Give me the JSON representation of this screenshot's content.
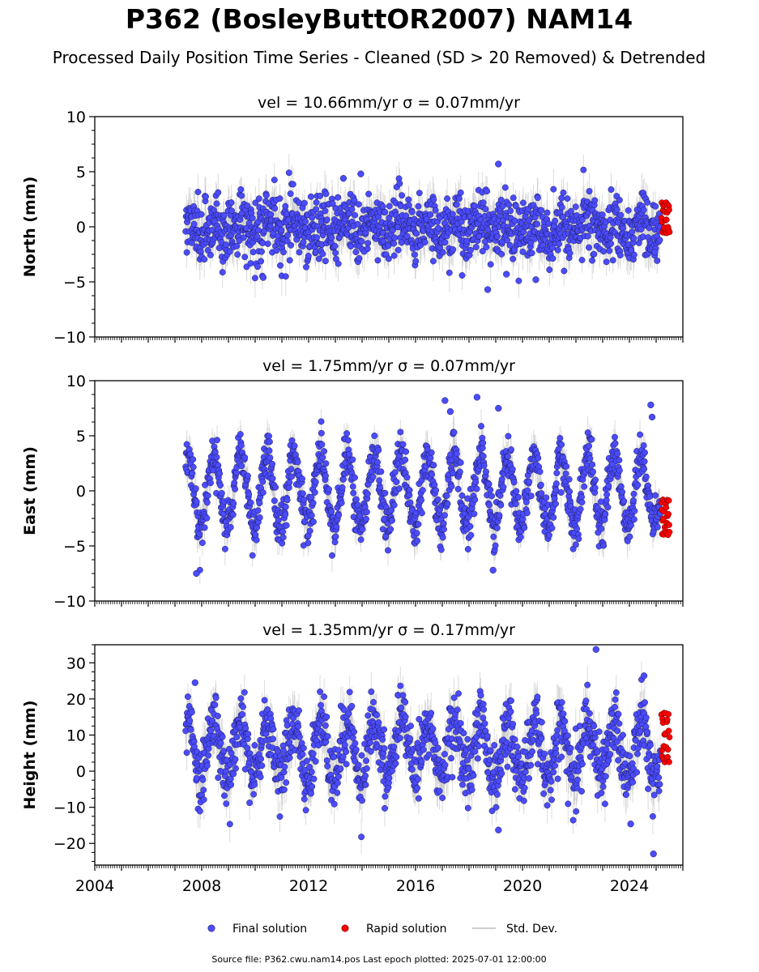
{
  "title": "P362 (BosleyButtOR2007) NAM14",
  "subtitle": "Processed Daily Position Time Series - Cleaned (SD > 20 Removed) & Detrended",
  "legend": {
    "final": "Final solution",
    "rapid": "Rapid solution",
    "std": "Std. Dev."
  },
  "footer": "Source file: P362.cwu.nam14.pos  Last epoch plotted: 2025-07-01 12:00:00",
  "colors": {
    "final": "#4b4bff",
    "rapid": "#ff0000",
    "std": "#bdbdbd"
  },
  "chart_data": [
    {
      "type": "scatter",
      "panel_title": "vel = 10.66mm/yr   σ = 0.07mm/yr",
      "ylabel": "North (mm)",
      "xlim": [
        2004,
        2026
      ],
      "ylim": [
        -10,
        10
      ],
      "yticks": [
        "−10",
        "−5",
        "0",
        "5",
        "10"
      ],
      "yticks_values": [
        -10,
        -5,
        0,
        5,
        10
      ],
      "xticks": [],
      "data_start": 2007.4,
      "data_end": 2025.15,
      "rapid_start": 2025.2,
      "rapid_end": 2025.5,
      "seasonal_amplitude": 0.6,
      "noise_sd": 1.5,
      "sigma_sd": 1.6,
      "rapid_range": [
        -0.6,
        2.2
      ],
      "outliers": [
        {
          "x": 2013.95,
          "y": 4.8
        },
        {
          "x": 2019.1,
          "y": 5.7
        },
        {
          "x": 2018.7,
          "y": -5.7
        },
        {
          "x": 2020.5,
          "y": -4.8
        },
        {
          "x": 2010.3,
          "y": -4.6
        },
        {
          "x": 2019.4,
          "y": -4.3
        },
        {
          "x": 2013.3,
          "y": 4.4
        },
        {
          "x": 2024.95,
          "y": -2.3
        }
      ],
      "series": [
        {
          "name": "Final solution",
          "color": "#4b4bff"
        },
        {
          "name": "Rapid solution",
          "color": "#ff0000"
        },
        {
          "name": "Std. Dev.",
          "color": "#bdbdbd"
        }
      ]
    },
    {
      "type": "scatter",
      "panel_title": "vel = 1.75mm/yr   σ = 0.07mm/yr",
      "ylabel": "East (mm)",
      "xlim": [
        2004,
        2026
      ],
      "ylim": [
        -10,
        10
      ],
      "yticks": [
        "−10",
        "−5",
        "0",
        "5",
        "10"
      ],
      "yticks_values": [
        -10,
        -5,
        0,
        5,
        10
      ],
      "xticks": [],
      "data_start": 2007.4,
      "data_end": 2025.15,
      "rapid_start": 2025.2,
      "rapid_end": 2025.5,
      "seasonal_amplitude": 3.3,
      "noise_sd": 1.0,
      "sigma_sd": 1.3,
      "rapid_range": [
        -4.0,
        -0.8
      ],
      "outliers": [
        {
          "x": 2017.1,
          "y": 8.2
        },
        {
          "x": 2018.3,
          "y": 8.5
        },
        {
          "x": 2019.1,
          "y": 7.5
        },
        {
          "x": 2024.8,
          "y": 7.8
        },
        {
          "x": 2024.85,
          "y": 6.7
        },
        {
          "x": 2017.3,
          "y": 7.2
        },
        {
          "x": 2007.8,
          "y": -7.5
        },
        {
          "x": 2018.9,
          "y": -7.2
        }
      ],
      "series": [
        {
          "name": "Final solution",
          "color": "#4b4bff"
        },
        {
          "name": "Rapid solution",
          "color": "#ff0000"
        },
        {
          "name": "Std. Dev.",
          "color": "#bdbdbd"
        }
      ]
    },
    {
      "type": "scatter",
      "panel_title": "vel = 1.35mm/yr   σ = 0.17mm/yr",
      "ylabel": "Height (mm)",
      "xlim": [
        2004,
        2026
      ],
      "ylim": [
        -26,
        35
      ],
      "yticks": [
        "−20",
        "−10",
        "0",
        "10",
        "20",
        "30"
      ],
      "yticks_values": [
        -20,
        -10,
        0,
        10,
        20,
        30
      ],
      "xticks": [
        "2004",
        "2008",
        "2012",
        "2016",
        "2020",
        "2024"
      ],
      "xticks_values": [
        2004,
        2008,
        2012,
        2016,
        2020,
        2024
      ],
      "data_start": 2007.4,
      "data_end": 2025.15,
      "rapid_start": 2025.2,
      "rapid_end": 2025.5,
      "baseline": 6,
      "seasonal_amplitude": 8,
      "noise_sd": 4.5,
      "sigma_sd": 5.0,
      "rapid_range": [
        2.5,
        16.3
      ],
      "outliers": [
        {
          "x": 2022.75,
          "y": 33.7
        },
        {
          "x": 2024.55,
          "y": 26.4
        },
        {
          "x": 2024.05,
          "y": -14.6
        },
        {
          "x": 2024.9,
          "y": -22.9
        },
        {
          "x": 2019.1,
          "y": -16.3
        },
        {
          "x": 2007.75,
          "y": 24.5
        }
      ],
      "series": [
        {
          "name": "Final solution",
          "color": "#4b4bff"
        },
        {
          "name": "Rapid solution",
          "color": "#ff0000"
        },
        {
          "name": "Std. Dev.",
          "color": "#bdbdbd"
        }
      ]
    }
  ]
}
